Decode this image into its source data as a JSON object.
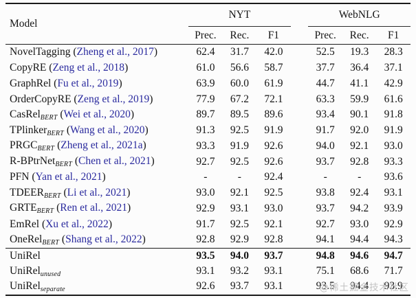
{
  "page": {
    "watermark": "@稀土掘金技术社区"
  },
  "colors": {
    "text": "#141414",
    "citation_link": "#2a2a9e",
    "rule": "#1a1a1a",
    "watermark": "#c3c3c3",
    "background": "#fcfcfc"
  },
  "table": {
    "header": {
      "model_label": "Model",
      "groups": [
        {
          "label": "NYT",
          "columns": [
            "Prec.",
            "Rec.",
            "F1"
          ]
        },
        {
          "label": "WebNLG",
          "columns": [
            "Prec.",
            "Rec.",
            "F1"
          ]
        }
      ]
    },
    "baselines": [
      {
        "name": "NovelTagging",
        "sub": "",
        "cite": "Zheng et al., 2017",
        "vals": [
          "62.4",
          "31.7",
          "42.0",
          "52.5",
          "19.3",
          "28.3"
        ],
        "bold": false
      },
      {
        "name": "CopyRE",
        "sub": "",
        "cite": "Zeng et al., 2018",
        "vals": [
          "61.0",
          "56.6",
          "58.7",
          "37.7",
          "36.4",
          "37.1"
        ],
        "bold": false
      },
      {
        "name": "GraphRel",
        "sub": "",
        "cite": "Fu et al., 2019",
        "vals": [
          "63.9",
          "60.0",
          "61.9",
          "44.7",
          "41.1",
          "42.9"
        ],
        "bold": false
      },
      {
        "name": "OrderCopyRE",
        "sub": "",
        "cite": "Zeng et al., 2019",
        "vals": [
          "77.9",
          "67.2",
          "72.1",
          "63.3",
          "59.9",
          "61.6"
        ],
        "bold": false
      },
      {
        "name": "CasRel",
        "sub": "BERT",
        "cite": "Wei et al., 2020",
        "vals": [
          "89.7",
          "89.5",
          "89.6",
          "93.4",
          "90.1",
          "91.8"
        ],
        "bold": false
      },
      {
        "name": "TPlinker",
        "sub": "BERT",
        "cite": "Wang et al., 2020",
        "vals": [
          "91.3",
          "92.5",
          "91.9",
          "91.7",
          "92.0",
          "91.9"
        ],
        "bold": false
      },
      {
        "name": "PRGC",
        "sub": "BERT",
        "cite": "Zheng et al., 2021a",
        "vals": [
          "93.3",
          "91.9",
          "92.6",
          "94.0",
          "92.1",
          "93.0"
        ],
        "bold": false
      },
      {
        "name": "R-BPtrNet",
        "sub": "BERT",
        "cite": "Chen et al., 2021",
        "vals": [
          "92.7",
          "92.5",
          "92.6",
          "93.7",
          "92.8",
          "93.3"
        ],
        "bold": false
      },
      {
        "name": "PFN",
        "sub": "",
        "cite": "Yan et al., 2021",
        "vals": [
          "-",
          "-",
          "92.4",
          "-",
          "-",
          "93.6"
        ],
        "bold": false
      },
      {
        "name": "TDEER",
        "sub": "BERT",
        "cite": "Li et al., 2021",
        "vals": [
          "93.0",
          "92.1",
          "92.5",
          "93.8",
          "92.4",
          "93.1"
        ],
        "bold": false
      },
      {
        "name": "GRTE",
        "sub": "BERT",
        "cite": "Ren et al., 2021",
        "vals": [
          "92.9",
          "93.1",
          "93.0",
          "93.7",
          "94.2",
          "93.9"
        ],
        "bold": false
      },
      {
        "name": "EmRel",
        "sub": "",
        "cite": "Xu et al., 2022",
        "vals": [
          "91.7",
          "92.5",
          "92.1",
          "92.7",
          "93.0",
          "92.9"
        ],
        "bold": false
      },
      {
        "name": "OneRel",
        "sub": "BERT",
        "cite": "Shang et al., 2022",
        "vals": [
          "92.8",
          "92.9",
          "92.8",
          "94.1",
          "94.4",
          "94.3"
        ],
        "bold": false
      }
    ],
    "ours": [
      {
        "name": "UniRel",
        "sub": "",
        "cite": null,
        "vals": [
          "93.5",
          "94.0",
          "93.7",
          "94.8",
          "94.6",
          "94.7"
        ],
        "bold": true
      },
      {
        "name": "UniRel",
        "sub": "unused",
        "cite": null,
        "vals": [
          "93.1",
          "93.2",
          "93.1",
          "75.1",
          "68.6",
          "71.7"
        ],
        "bold": false
      },
      {
        "name": "UniRel",
        "sub": "separate",
        "cite": null,
        "vals": [
          "92.6",
          "93.7",
          "93.1",
          "93.5",
          "94.4",
          "93.9"
        ],
        "bold": false
      }
    ]
  }
}
